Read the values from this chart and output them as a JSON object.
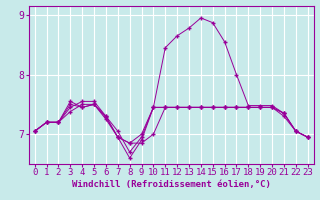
{
  "xlabel": "Windchill (Refroidissement éolien,°C)",
  "bg_color": "#c8eaea",
  "line_color": "#990099",
  "grid_color": "#ffffff",
  "x_values": [
    0,
    1,
    2,
    3,
    4,
    5,
    6,
    7,
    8,
    9,
    10,
    11,
    12,
    13,
    14,
    15,
    16,
    17,
    18,
    19,
    20,
    21,
    22,
    23
  ],
  "series": [
    [
      7.05,
      7.2,
      7.2,
      7.5,
      7.45,
      7.5,
      7.3,
      6.95,
      6.85,
      7.0,
      7.45,
      8.45,
      8.65,
      8.78,
      8.95,
      8.87,
      8.55,
      8.0,
      7.48,
      7.48,
      7.48,
      7.35,
      7.05,
      6.95
    ],
    [
      7.05,
      7.2,
      7.2,
      7.45,
      7.55,
      7.55,
      7.3,
      7.05,
      6.7,
      6.95,
      7.45,
      7.45,
      7.45,
      7.45,
      7.45,
      7.45,
      7.45,
      7.45,
      7.45,
      7.45,
      7.45,
      7.35,
      7.05,
      6.95
    ],
    [
      7.05,
      7.2,
      7.2,
      7.55,
      7.45,
      7.5,
      7.25,
      6.95,
      6.6,
      6.9,
      7.45,
      7.45,
      7.45,
      7.45,
      7.45,
      7.45,
      7.45,
      7.45,
      7.45,
      7.45,
      7.45,
      7.35,
      7.05,
      6.95
    ],
    [
      7.05,
      7.2,
      7.2,
      7.38,
      7.5,
      7.5,
      7.28,
      6.95,
      6.85,
      6.85,
      7.0,
      7.45,
      7.45,
      7.45,
      7.45,
      7.45,
      7.45,
      7.45,
      7.45,
      7.45,
      7.45,
      7.3,
      7.05,
      6.95
    ]
  ],
  "ylim": [
    6.5,
    9.15
  ],
  "yticks": [
    7,
    8,
    9
  ],
  "xticks": [
    0,
    1,
    2,
    3,
    4,
    5,
    6,
    7,
    8,
    9,
    10,
    11,
    12,
    13,
    14,
    15,
    16,
    17,
    18,
    19,
    20,
    21,
    22,
    23
  ],
  "xlabel_fontsize": 6.5,
  "tick_fontsize": 6.5
}
